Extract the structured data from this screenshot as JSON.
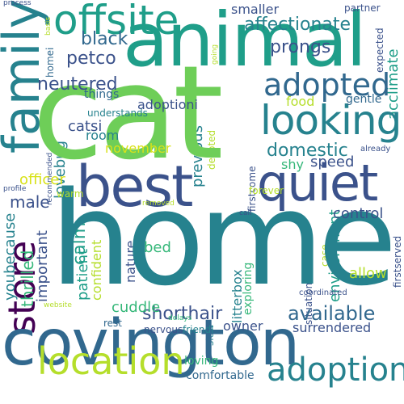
{
  "colors": {
    "purple": "#440154",
    "indigo": "#3b528b",
    "blue": "#31688e",
    "teal": "#26828e",
    "sea": "#1f9e89",
    "green": "#35b779",
    "lime": "#6ece58",
    "yellowgreen": "#b5de2b",
    "yellow": "#d8e219"
  },
  "words": {
    "home": "home",
    "cat": "cat",
    "animal": "animal",
    "covington": "covington",
    "best": "best",
    "quiet": "quiet",
    "offsite": "offsite",
    "looking": "looking",
    "family": "family",
    "adopted": "adopted",
    "location": "location",
    "adoption": "adoption",
    "store": "store",
    "available": "available",
    "shorthair": "shorthair",
    "domestic": "domestic",
    "affectionate": "affectionate",
    "prongs": "prongs",
    "smaller": "smaller",
    "black": "black",
    "petco": "petco",
    "neutered": "neutered",
    "adoptioni": "adoptioni",
    "food": "food",
    "catsi": "catsi",
    "room": "room",
    "previous": "previous",
    "speed": "speed",
    "shy": "shy",
    "november": "november",
    "male": "male",
    "control": "control",
    "allow": "allow",
    "cuddle": "cuddle",
    "surrendered": "surrendered",
    "owner": "owner",
    "bed": "bed",
    "nature": "nature",
    "patient": "patient",
    "important": "important",
    "thrilled": "thrilled",
    "youbecause": "youbecause",
    "calm": "calm",
    "lovebug": "lovebug",
    "officer": "officer",
    "gentle": "gentle",
    "acclimate": "acclimate",
    "environment": "environment",
    "litterbox": "litterbox",
    "exploring": "exploring",
    "slow": "slow",
    "confident": "confident",
    "loving": "loving",
    "comfortable": "comfortable",
    "nervous": "nervous",
    "friendi": "friendi",
    "rest": "rest",
    "forever": "forever",
    "understands": "understands",
    "things": "things",
    "homei": "homei",
    "process": "process",
    "partner": "partner",
    "expected": "expected",
    "basis": "basis",
    "going": "going",
    "recommended": "recommended",
    "warm": "warm",
    "profile": "profile",
    "removed": "removed",
    "firstcome": "firstcome",
    "firstserved": "firstserved",
    "devoted": "devoted",
    "call": "call",
    "coordinated": "coordinated",
    "already": "already",
    "situations": "situations",
    "case": "case",
    "website": "website",
    "delays": "delays"
  }
}
